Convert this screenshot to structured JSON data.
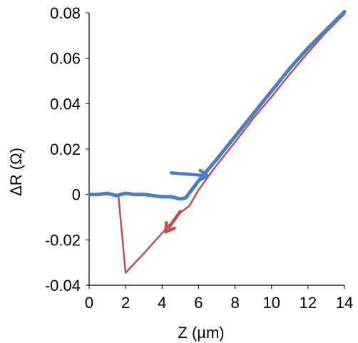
{
  "chart_data": {
    "type": "line",
    "xlabel": "Z (µm)",
    "ylabel": "ΔR (Ω)",
    "xlim": [
      0,
      14
    ],
    "ylim": [
      -0.04,
      0.08
    ],
    "x_ticks": [
      0,
      2,
      4,
      6,
      8,
      10,
      12,
      14
    ],
    "y_ticks": [
      -0.04,
      -0.02,
      0,
      0.02,
      0.04,
      0.06,
      0.08
    ],
    "x_tick_labels": [
      "0",
      "2",
      "4",
      "6",
      "8",
      "10",
      "12",
      "14"
    ],
    "y_tick_labels": [
      "-0.04",
      "-0.02",
      "0",
      "0.02",
      "0.04",
      "0.06",
      "0.08"
    ],
    "grid": false,
    "series": [
      {
        "color": "#4a7ec4",
        "direction": "increasing Z",
        "x": [
          0,
          0.5,
          1.0,
          1.5,
          2.0,
          2.5,
          3.0,
          3.5,
          4.0,
          4.5,
          5.0,
          5.3,
          6,
          7,
          8,
          9,
          10,
          11,
          12,
          13,
          14
        ],
        "y": [
          0.0,
          0.0,
          0.0005,
          -0.0005,
          0.0005,
          0.0,
          0.0,
          -0.0005,
          -0.001,
          -0.001,
          -0.002,
          -0.0015,
          0.006,
          0.0155,
          0.0255,
          0.0355,
          0.0455,
          0.0555,
          0.0645,
          0.0725,
          0.0805
        ]
      },
      {
        "color": "#c0504d",
        "direction": "decreasing Z",
        "x": [
          0.4,
          1.2,
          1.6,
          2.0,
          3.0,
          4.0,
          5.0,
          5.5,
          6,
          7,
          8,
          9,
          10,
          11,
          12,
          13,
          14
        ],
        "y": [
          0.0,
          0.0,
          0.0,
          -0.0345,
          -0.026,
          -0.017,
          -0.008,
          -0.005,
          0.002,
          0.013,
          0.023,
          0.0335,
          0.043,
          0.053,
          0.0625,
          0.0715,
          0.0795
        ]
      }
    ],
    "annotations": [
      {
        "type": "arrow",
        "color": "#4a7ec4",
        "meaning": "direction of blue curve (increasing Z)",
        "from": [
          4.5,
          0.0095
        ],
        "to": [
          6.5,
          0.0082
        ]
      },
      {
        "type": "arrow",
        "color": "#c0504d",
        "meaning": "direction of red curve (decreasing Z)",
        "from": [
          5.0,
          -0.0075
        ],
        "to": [
          4.2,
          -0.0165
        ]
      }
    ]
  }
}
